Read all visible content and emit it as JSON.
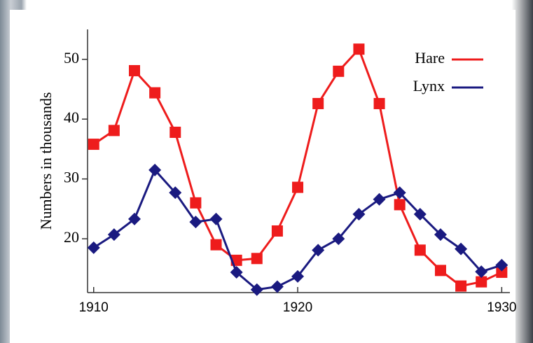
{
  "chart_data": {
    "type": "line",
    "y_label": "Numbers in thousands",
    "x": [
      1910,
      1911,
      1912,
      1913,
      1914,
      1915,
      1916,
      1917,
      1918,
      1919,
      1920,
      1921,
      1922,
      1923,
      1924,
      1925,
      1926,
      1927,
      1928,
      1929,
      1930
    ],
    "series": [
      {
        "name": "Hare",
        "color": "#ee1c1c",
        "marker": "square",
        "values": [
          35.8,
          38.1,
          48.1,
          44.4,
          37.8,
          26.0,
          19.0,
          16.4,
          16.7,
          21.3,
          28.6,
          42.6,
          48.0,
          51.7,
          42.6,
          25.7,
          18.1,
          14.7,
          12.1,
          12.8,
          14.4
        ]
      },
      {
        "name": "Lynx",
        "color": "#1a1a80",
        "marker": "diamond",
        "values": [
          18.5,
          20.7,
          23.3,
          31.5,
          27.7,
          22.8,
          23.3,
          14.4,
          11.5,
          12.0,
          13.7,
          18.1,
          20.0,
          24.1,
          26.6,
          27.7,
          24.1,
          20.7,
          18.3,
          14.5,
          15.6
        ]
      }
    ],
    "xlim": [
      1909.7,
      1930.4
    ],
    "xticks": [
      1910,
      1920,
      1930
    ],
    "ylim": [
      11,
      55
    ],
    "yticks": [
      20,
      30,
      40,
      50
    ],
    "legend": "upper right"
  }
}
